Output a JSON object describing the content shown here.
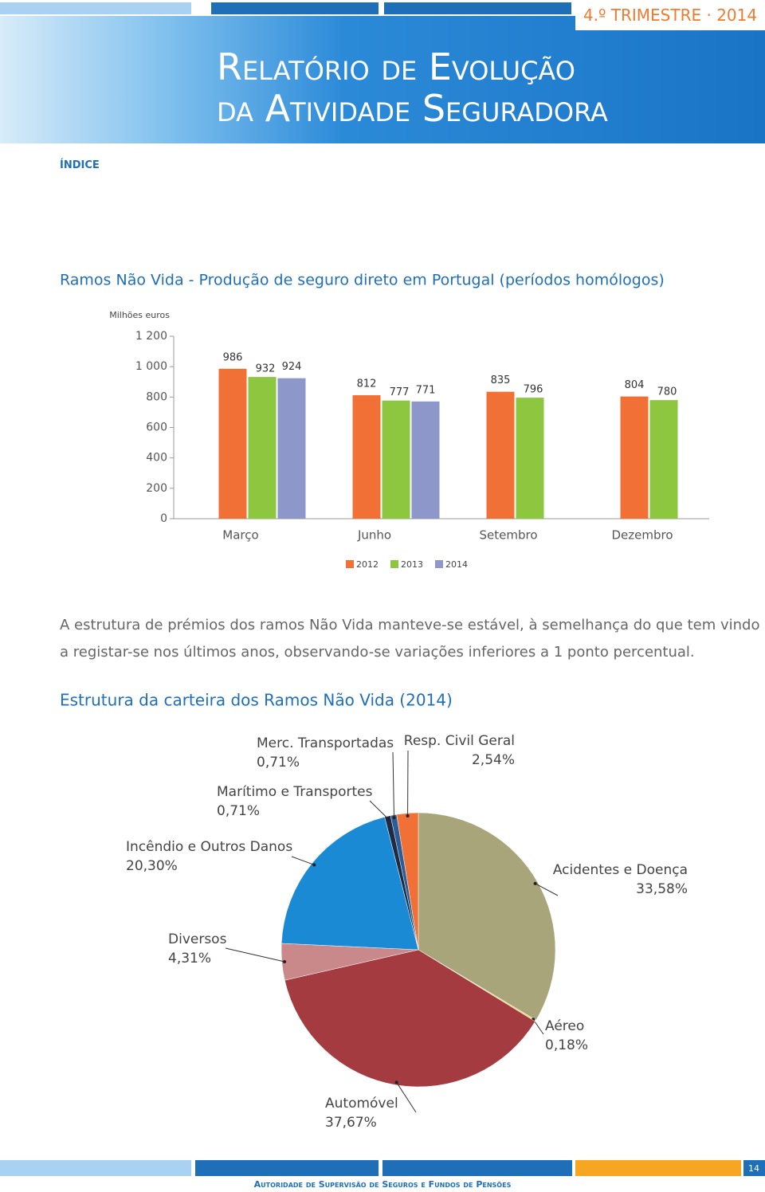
{
  "header": {
    "quarter": "4.º TRIMESTRE · 2014",
    "title_line1": "Relatório de Evolução",
    "title_line2": "da Atividade Seguradora",
    "index_link": "ÍNDICE"
  },
  "body_text": "A estrutura de prémios dos ramos Não Vida manteve-se estável, à semelhança do que tem vindo a registar-se nos últimos anos, observando-se variações inferiores a 1 ponto percentual.",
  "footer": {
    "organization": "Autoridade de Supervisão de Seguros e Fundos de Pensões",
    "page": "14"
  },
  "chart_data": [
    {
      "type": "bar",
      "title": "Ramos Não Vida - Produção de seguro direto em Portugal (períodos homólogos)",
      "y_label": "Milhões euros",
      "categories": [
        "Março",
        "Junho",
        "Setembro",
        "Dezembro"
      ],
      "series": [
        {
          "name": "2012",
          "color": "#f07036",
          "values": [
            986,
            812,
            835,
            804
          ]
        },
        {
          "name": "2013",
          "color": "#8dc63f",
          "values": [
            932,
            777,
            796,
            780
          ]
        },
        {
          "name": "2014",
          "color": "#8e97c9",
          "values": [
            924,
            771,
            null,
            null
          ]
        }
      ],
      "ylim": [
        0,
        1200
      ],
      "yticks": [
        0,
        200,
        400,
        600,
        800,
        {
          "value": 1000,
          "label": "1 000"
        },
        {
          "value": 1200,
          "label": "1 200"
        }
      ],
      "legend": "bottom"
    },
    {
      "type": "pie",
      "title": "Estrutura da carteira dos Ramos Não Vida (2014)",
      "categories": [
        "Acidentes e Doença",
        "Aéreo",
        "Automóvel",
        "Diversos",
        "Incêndio e Outros  Danos",
        "Marítimo e Transportes",
        "Merc. Transportadas",
        "Resp. Civil Geral"
      ],
      "values": [
        33.58,
        0.18,
        37.67,
        4.31,
        20.3,
        0.71,
        0.71,
        2.54
      ],
      "value_labels": [
        "33,58%",
        "0,18%",
        "37,67%",
        "4,31%",
        "20,30%",
        "0,71%",
        "0,71%",
        "2,54%"
      ],
      "colors": [
        "#a8a57a",
        "#e8d870",
        "#a33b40",
        "#c9888a",
        "#1a8ad4",
        "#1d2b45",
        "#2d5d96",
        "#f07036"
      ]
    }
  ]
}
